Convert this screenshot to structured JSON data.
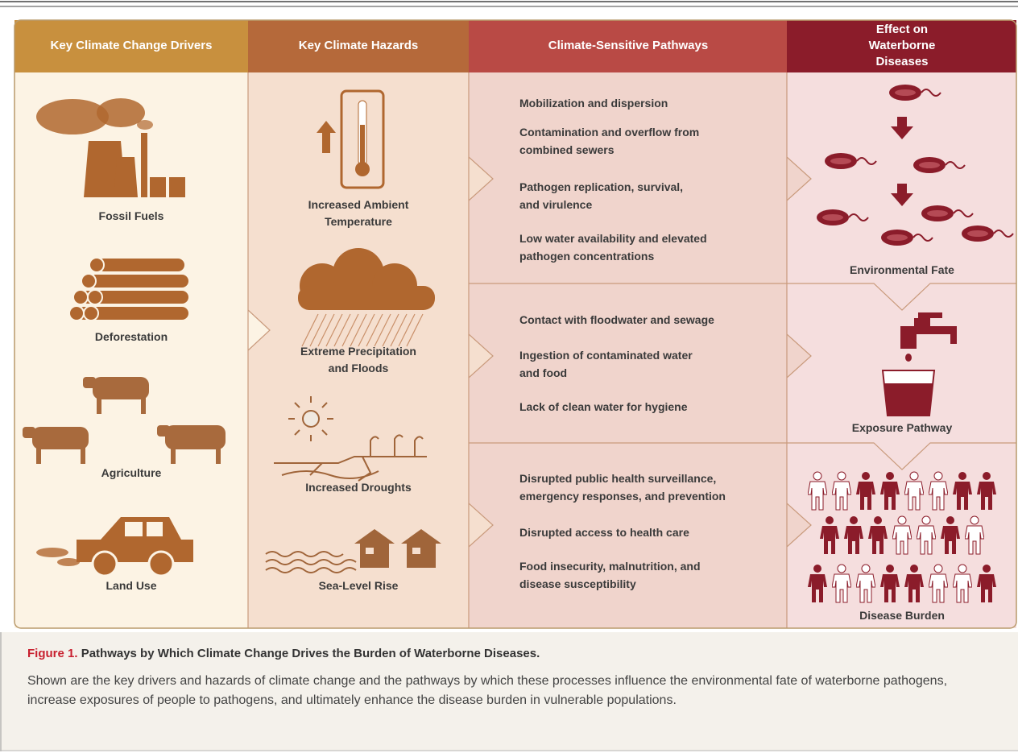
{
  "header_columns": [
    "Key Climate Change Drivers",
    "Key Climate Hazards",
    "Climate-Sensitive Pathways",
    "Effect on\nWaterborne Diseases"
  ],
  "drivers": [
    "Fossil Fuels",
    "Deforestation",
    "Agriculture",
    "Land Use"
  ],
  "hazards": [
    "Increased Ambient\nTemperature",
    "Extreme Precipitation\nand Floods",
    "Increased Droughts",
    "Sea-Level Rise"
  ],
  "pathways": [
    [
      "Mobilization and dispersion",
      "Contamination and overflow from\ncombined sewers",
      "Pathogen replication, survival,\nand virulence",
      "Low water availability and elevated\npathogen concentrations"
    ],
    [
      "Contact with floodwater and sewage",
      "Ingestion of contaminated water\nand food",
      "Lack of clean water for hygiene"
    ],
    [
      "Disrupted public health surveillance,\nemergency responses, and prevention",
      "Disrupted access to health care",
      "Food insecurity, malnutrition, and\ndisease susceptibility"
    ]
  ],
  "effects": [
    "Environmental Fate",
    "Exposure Pathway",
    "Disease Burden"
  ],
  "caption": {
    "label": "Figure 1.",
    "title": "Pathways by Which Climate Change Drives the Burden of Waterborne Diseases.",
    "text": "Shown are the key drivers and hazards of climate change and the pathways by which these processes influence the environmental fate of waterborne pathogens, increase exposures of people to pathogens, and ultimately enhance the disease burden in vulnerable populations."
  }
}
